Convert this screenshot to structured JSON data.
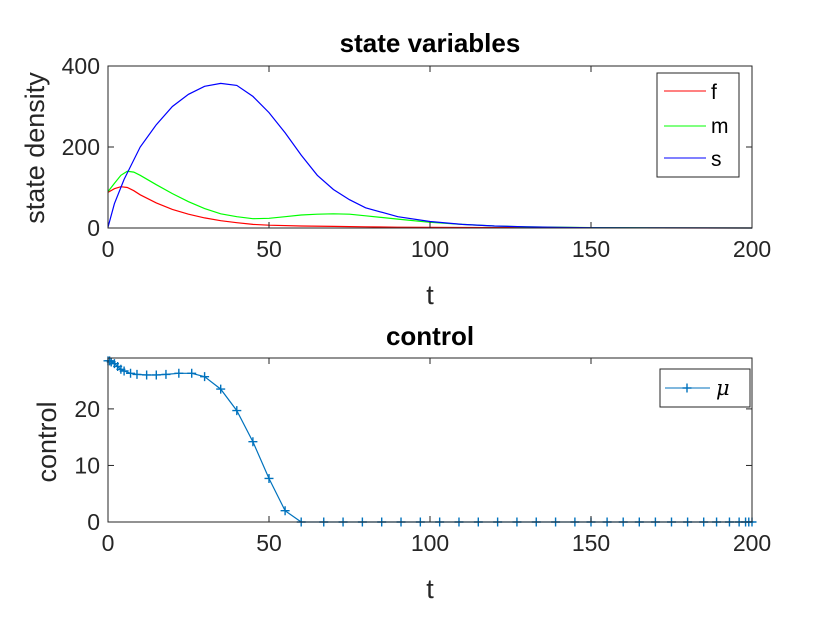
{
  "chart_data": [
    {
      "type": "line",
      "title": "state variables",
      "xlabel": "t",
      "ylabel": "state density",
      "xlim": [
        0,
        200
      ],
      "ylim": [
        0,
        400
      ],
      "xticks": [
        "0",
        "50",
        "100",
        "150",
        "200"
      ],
      "yticks": [
        "0",
        "200",
        "400"
      ],
      "legend": "top-right",
      "grid": false,
      "series": [
        {
          "name": "f",
          "color": "#ff0000",
          "x": [
            0,
            2,
            4,
            6,
            8,
            10,
            15,
            20,
            25,
            30,
            35,
            40,
            45,
            50,
            60,
            70,
            80,
            90,
            100,
            120,
            150,
            200
          ],
          "values": [
            88,
            97,
            102,
            100,
            92,
            82,
            62,
            46,
            34,
            25,
            18,
            13,
            9,
            7,
            5,
            4,
            3,
            2,
            1.5,
            1,
            0.5,
            0
          ]
        },
        {
          "name": "m",
          "color": "#00ff00",
          "x": [
            0,
            2,
            4,
            6,
            8,
            10,
            15,
            20,
            25,
            30,
            35,
            40,
            45,
            50,
            55,
            60,
            65,
            70,
            75,
            80,
            90,
            100,
            110,
            120,
            130,
            150,
            170,
            200
          ],
          "values": [
            90,
            110,
            130,
            140,
            138,
            130,
            107,
            85,
            65,
            48,
            35,
            28,
            23,
            24,
            28,
            32,
            34,
            35,
            34,
            30,
            22,
            14,
            9,
            5,
            3,
            1,
            0.5,
            0
          ]
        },
        {
          "name": "s",
          "color": "#0000ff",
          "x": [
            0,
            2,
            5,
            10,
            15,
            20,
            25,
            30,
            35,
            40,
            45,
            50,
            55,
            60,
            65,
            70,
            75,
            80,
            90,
            100,
            110,
            120,
            130,
            140,
            150,
            170,
            200
          ],
          "values": [
            2,
            60,
            120,
            200,
            255,
            300,
            330,
            350,
            357,
            352,
            325,
            285,
            235,
            180,
            130,
            95,
            70,
            50,
            28,
            16,
            9,
            5,
            3,
            1.5,
            0.8,
            0.3,
            0
          ]
        }
      ]
    },
    {
      "type": "line",
      "title": "control",
      "xlabel": "t",
      "ylabel": "control",
      "xlim": [
        0,
        200
      ],
      "ylim": [
        0,
        29
      ],
      "xticks": [
        "0",
        "50",
        "100",
        "150",
        "200"
      ],
      "yticks": [
        "0",
        "10",
        "20"
      ],
      "legend": "top-right",
      "grid": false,
      "series": [
        {
          "name": "μ",
          "color": "#0072bd",
          "marker": "+",
          "x": [
            0,
            0.5,
            1,
            2,
            3,
            4,
            5,
            7,
            9,
            12,
            15,
            18,
            22,
            26,
            30,
            35,
            40,
            45,
            50,
            55,
            60,
            67,
            73,
            79,
            85,
            91,
            97,
            103,
            109,
            115,
            121,
            127,
            133,
            139,
            145,
            150,
            155,
            160,
            165,
            170,
            175,
            180,
            185,
            189,
            193,
            196,
            198,
            199,
            200
          ],
          "values": [
            28.5,
            28.5,
            28.3,
            28.0,
            27.5,
            27.0,
            26.7,
            26.3,
            26.1,
            26.0,
            26.0,
            26.1,
            26.3,
            26.3,
            25.7,
            23.5,
            19.7,
            14.2,
            7.7,
            2.0,
            0,
            0,
            0,
            0,
            0,
            0,
            0,
            0,
            0,
            0,
            0,
            0,
            0,
            0,
            0,
            0,
            0,
            0,
            0,
            0,
            0,
            0,
            0,
            0,
            0,
            0,
            0,
            0,
            0
          ]
        }
      ]
    }
  ]
}
